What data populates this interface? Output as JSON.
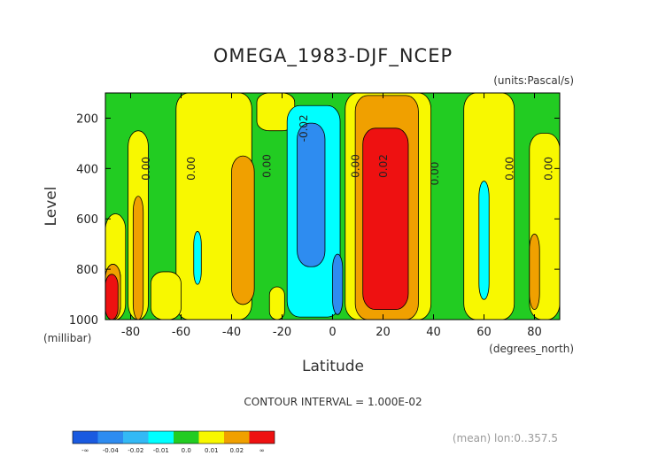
{
  "chart_data": {
    "type": "contour",
    "title": "OMEGA_1983-DJF_NCEP",
    "units_label": "(units:Pascal/s)",
    "xlabel": "Latitude",
    "x_units_label": "(degrees_north)",
    "ylabel": "Level",
    "y_units_label": "(millibar)",
    "contour_interval_label": "CONTOUR INTERVAL = 1.000E-02",
    "mean_label": "(mean) lon:0..357.5",
    "xlim": [
      -90,
      90
    ],
    "ylim": [
      1000,
      100
    ],
    "x_ticks": [
      {
        "value": -80,
        "label": "-80"
      },
      {
        "value": -60,
        "label": "-60"
      },
      {
        "value": -40,
        "label": "-40"
      },
      {
        "value": -20,
        "label": "-20"
      },
      {
        "value": 0,
        "label": "0"
      },
      {
        "value": 20,
        "label": "20"
      },
      {
        "value": 40,
        "label": "40"
      },
      {
        "value": 60,
        "label": "60"
      },
      {
        "value": 80,
        "label": "80"
      }
    ],
    "y_ticks": [
      {
        "value": 200,
        "label": "200"
      },
      {
        "value": 400,
        "label": "400"
      },
      {
        "value": 600,
        "label": "600"
      },
      {
        "value": 800,
        "label": "800"
      },
      {
        "value": 1000,
        "label": "1000"
      }
    ],
    "contour_line_labels": [
      {
        "lat": -72.5,
        "level": 400,
        "label": "0.00"
      },
      {
        "lat": -54.5,
        "level": 400,
        "label": "0.00"
      },
      {
        "lat": -24.5,
        "level": 390,
        "label": "0.00"
      },
      {
        "lat": -10,
        "level": 240,
        "label": "-0.02"
      },
      {
        "lat": 10.5,
        "level": 390,
        "label": "0.00"
      },
      {
        "lat": 21.5,
        "level": 390,
        "label": "0.02"
      },
      {
        "lat": 42,
        "level": 420,
        "label": "0.00"
      },
      {
        "lat": 71.5,
        "level": 400,
        "label": "0.00"
      },
      {
        "lat": 87,
        "level": 400,
        "label": "0.00"
      }
    ],
    "colorbar": {
      "colors": [
        "#1a5ae0",
        "#2e8cf0",
        "#33b9f5",
        "#00ffff",
        "#22cc22",
        "#f8f800",
        "#f0a000",
        "#ee1111"
      ],
      "labels": [
        "-∞",
        "-0.04",
        "-0.02",
        "-0.01",
        "0.0",
        "0.01",
        "0.02",
        "∞"
      ]
    },
    "regions": [
      {
        "color": "#22cc22",
        "lat": [
          -90,
          90
        ],
        "level": [
          100,
          1000
        ]
      },
      {
        "color": "#f8f800",
        "lat": [
          -90,
          -82
        ],
        "level": [
          580,
          1000
        ]
      },
      {
        "color": "#f8f800",
        "lat": [
          -81,
          -73
        ],
        "level": [
          250,
          1000
        ]
      },
      {
        "color": "#f0a000",
        "lat": [
          -79,
          -75
        ],
        "level": [
          510,
          1000
        ]
      },
      {
        "color": "#f8f800",
        "lat": [
          -62,
          -32
        ],
        "level": [
          100,
          1000
        ]
      },
      {
        "color": "#f8f800",
        "lat": [
          -72,
          -60
        ],
        "level": [
          810,
          1000
        ]
      },
      {
        "color": "#f0a000",
        "lat": [
          -40,
          -31
        ],
        "level": [
          350,
          940
        ]
      },
      {
        "color": "#00ffff",
        "lat": [
          -55,
          -52
        ],
        "level": [
          650,
          860
        ]
      },
      {
        "color": "#f8f800",
        "lat": [
          -30,
          -15
        ],
        "level": [
          100,
          250
        ]
      },
      {
        "color": "#f8f800",
        "lat": [
          -25,
          -19
        ],
        "level": [
          870,
          1000
        ]
      },
      {
        "color": "#00ffff",
        "lat": [
          -18,
          3
        ],
        "level": [
          150,
          990
        ]
      },
      {
        "color": "#2e8cf0",
        "lat": [
          -14,
          -3
        ],
        "level": [
          220,
          790
        ]
      },
      {
        "color": "#2e8cf0",
        "lat": [
          0,
          4
        ],
        "level": [
          740,
          980
        ]
      },
      {
        "color": "#f8f800",
        "lat": [
          5,
          39
        ],
        "level": [
          100,
          1000
        ]
      },
      {
        "color": "#f0a000",
        "lat": [
          9,
          34
        ],
        "level": [
          110,
          1000
        ]
      },
      {
        "color": "#ee1111",
        "lat": [
          12,
          30
        ],
        "level": [
          240,
          960
        ]
      },
      {
        "color": "#f8f800",
        "lat": [
          52,
          72
        ],
        "level": [
          100,
          1000
        ]
      },
      {
        "color": "#00ffff",
        "lat": [
          58,
          62
        ],
        "level": [
          450,
          920
        ]
      },
      {
        "color": "#f8f800",
        "lat": [
          78,
          90
        ],
        "level": [
          260,
          1000
        ]
      },
      {
        "color": "#f0a000",
        "lat": [
          78,
          82
        ],
        "level": [
          660,
          960
        ]
      },
      {
        "color": "#f8f800",
        "lat": [
          -90,
          -84
        ],
        "level": [
          780,
          1000
        ]
      },
      {
        "color": "#f0a000",
        "lat": [
          -90,
          -84
        ],
        "level": [
          780,
          1000
        ]
      },
      {
        "color": "#ee1111",
        "lat": [
          -90,
          -85
        ],
        "level": [
          820,
          1000
        ]
      }
    ]
  }
}
